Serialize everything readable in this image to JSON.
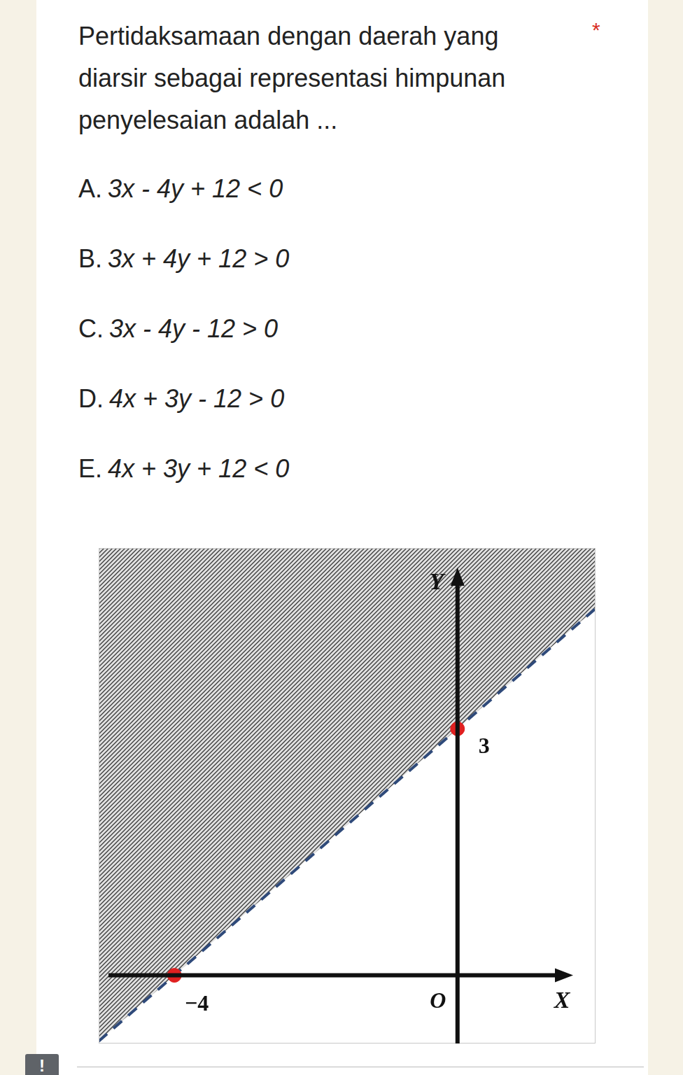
{
  "question": "Pertidaksamaan dengan daerah yang diarsir sebagai representasi himpunan penyelesaian adalah ...",
  "required_mark": "*",
  "options": [
    {
      "letter": "A.",
      "text": "3x - 4y + 12 < 0"
    },
    {
      "letter": "B.",
      "text": "3x + 4y + 12 > 0"
    },
    {
      "letter": "C.",
      "text": "3x - 4y - 12 > 0"
    },
    {
      "letter": "D.",
      "text": "4x + 3y - 12 > 0"
    },
    {
      "letter": "E.",
      "text": "4x + 3y + 12 < 0"
    }
  ],
  "footer_icon": "!",
  "chart_data": {
    "type": "line",
    "xlabel": "X",
    "ylabel": "Y",
    "xlim": [
      -5.07,
      1.95
    ],
    "ylim": [
      -0.83,
      5.2
    ],
    "grid": false,
    "tick_labels": false,
    "series": [
      {
        "type": "line",
        "x": [
          -5.07,
          1.95
        ],
        "values": [
          -0.8025,
          4.4625
        ],
        "line_style": "dashed",
        "color": "#2f4a7a"
      },
      {
        "type": "scatter",
        "x": [
          -4,
          0
        ],
        "values": [
          0,
          3
        ],
        "color": "#e02020",
        "marker": "circle"
      }
    ],
    "annotations": [
      {
        "text": "−4",
        "x": -4,
        "y": 0
      },
      {
        "text": "3",
        "x": 0,
        "y": 3
      },
      {
        "text": "O",
        "x": 0,
        "y": 0
      }
    ]
  }
}
